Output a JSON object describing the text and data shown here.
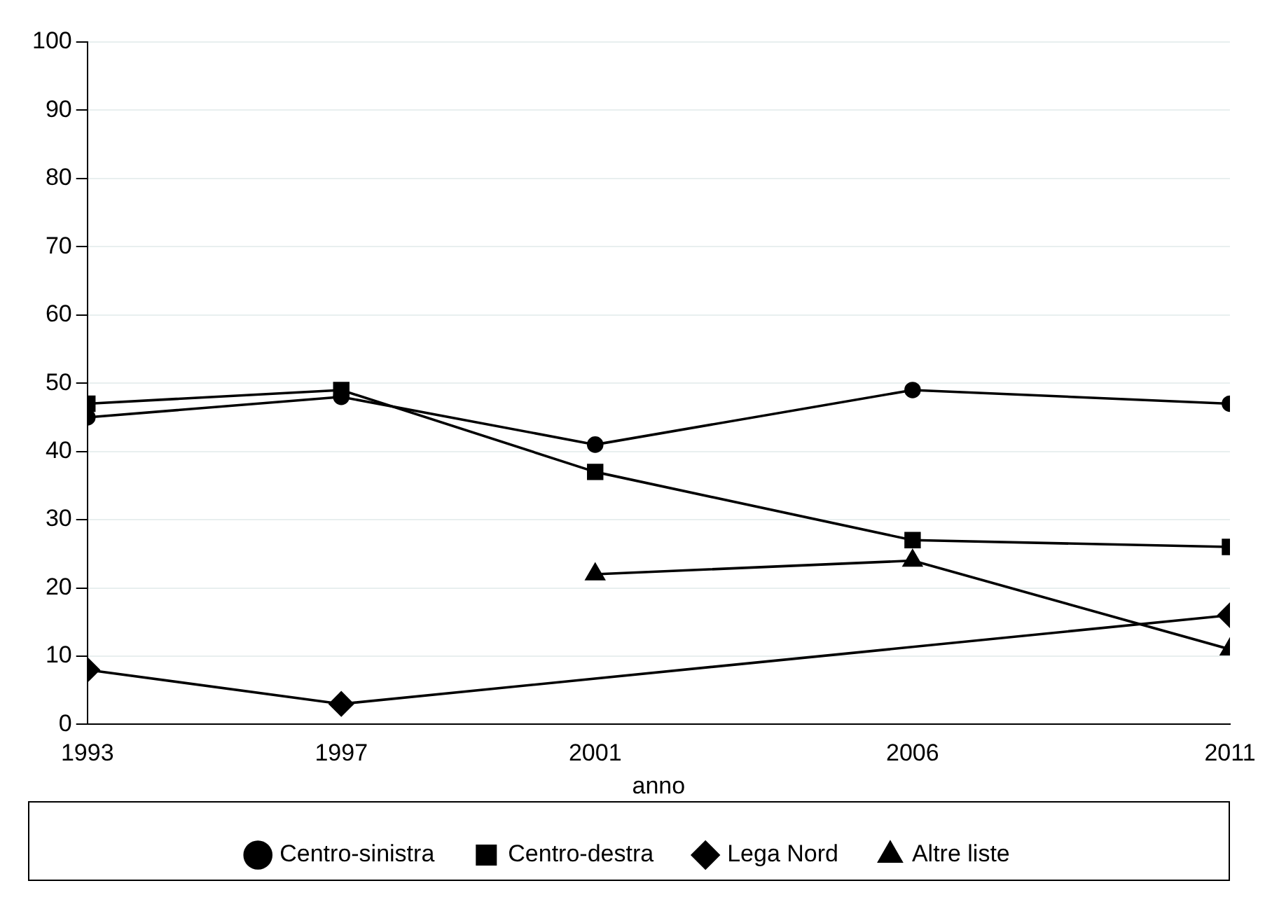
{
  "chart_data": {
    "type": "line",
    "xlabel": "anno",
    "x": [
      1993,
      1997,
      2001,
      2006,
      2011
    ],
    "xlim": [
      1993,
      2011
    ],
    "xticks": [
      1993,
      1997,
      2001,
      2006,
      2011
    ],
    "ylim": [
      0,
      100
    ],
    "yticks": [
      0,
      10,
      20,
      30,
      40,
      50,
      60,
      70,
      80,
      90,
      100
    ],
    "grid": "y",
    "legend": "bottom",
    "series": [
      {
        "name": "Centro-sinistra",
        "color": "#000000",
        "marker": "circle",
        "values": [
          45,
          48,
          41,
          49,
          47
        ]
      },
      {
        "name": "Centro-destra",
        "color": "#000000",
        "marker": "square",
        "values": [
          47,
          49,
          37,
          27,
          26
        ]
      },
      {
        "name": "Lega Nord",
        "color": "#000000",
        "marker": "diamond",
        "values": [
          8,
          3,
          null,
          null,
          16
        ]
      },
      {
        "name": "Altre liste",
        "color": "#000000",
        "marker": "triangle",
        "values": [
          null,
          null,
          22,
          24,
          11
        ]
      }
    ]
  }
}
